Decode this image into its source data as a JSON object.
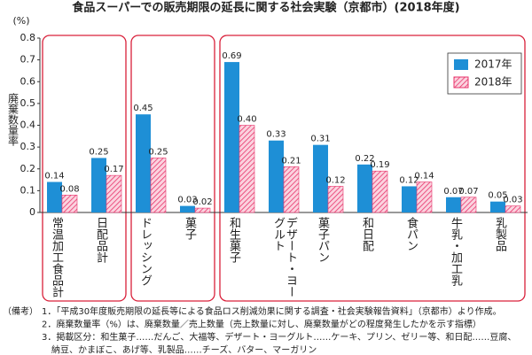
{
  "chart_data": {
    "type": "bar",
    "title": "食品スーパーでの販売期限の延長に関する社会実験（京都市）(2018年度)",
    "y_unit": "(%)",
    "y_label": "廃棄数量率",
    "categories": [
      "常温加工食品計",
      "日配品計",
      "ドレッシング",
      "菓子",
      "和生菓子",
      "デザート・ヨーグルト",
      "菓子パン",
      "和日配",
      "食パン",
      "牛乳・加工乳",
      "乳製品"
    ],
    "series": [
      {
        "name": "2017年",
        "color": "#1e8fd6",
        "values": [
          0.14,
          0.25,
          0.45,
          0.03,
          0.69,
          0.33,
          0.31,
          0.22,
          0.12,
          0.07,
          0.05
        ],
        "value_labels": [
          "0.14",
          "0.25",
          "0.45",
          "0.03",
          "0.69",
          "0.33",
          "0.31",
          "0.22",
          "0.12",
          "0.07",
          "0.05"
        ]
      },
      {
        "name": "2018年",
        "color": "#e8336b",
        "values": [
          0.08,
          0.17,
          0.25,
          0.02,
          0.4,
          0.21,
          0.12,
          0.19,
          0.14,
          0.07,
          0.03
        ],
        "value_labels": [
          "0.08",
          "0.17",
          "0.25",
          "0.02",
          "0.40",
          "0.21",
          "0.12",
          "0.19",
          "0.14",
          "0.07",
          "0.03"
        ]
      }
    ],
    "ylim": [
      0,
      0.8
    ],
    "yticks": [
      0,
      0.1,
      0.2,
      0.3,
      0.4,
      0.5,
      0.6,
      0.7,
      0.8
    ],
    "legend": "upper right",
    "notes_label": "（備考）",
    "notes": [
      "1．「平成30年度販売期限の延長等による食品ロス削減効果に関する調査・社会実験報告資料」（京都市）より作成。",
      "2．廃棄数量率（%）は、廃棄数量／売上数量（売上数量に対し、廃棄数量がどの程度発生したかを示す指標）",
      "3．掲載区分：和生菓子……だんご、大福等、デザート・ヨーグルト……ケーキ、プリン、ゼリー等、和日配……豆腐、",
      "納豆、かまぼこ、あげ等、乳製品……チーズ、バター、マーガリン"
    ]
  }
}
